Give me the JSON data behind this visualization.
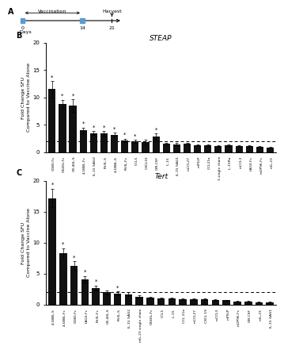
{
  "panel_B_title": "STEAP",
  "panel_C_title": "Tert",
  "ylabel": "Fold Change SFU\nCompared to Vaccine Alone",
  "ylim_B": [
    0,
    20
  ],
  "ylim_C": [
    0,
    20
  ],
  "yticks": [
    0,
    5,
    10,
    15,
    20
  ],
  "B_labels": [
    "CD80-Fc",
    "OX40L-Fc",
    "OX-40L-S",
    "4-1BBL-Fc",
    "IL-15 SAG2",
    "Flt3L-S",
    "4-1BBL-S",
    "Flt3L-Fc",
    "CCL5",
    "CXCL10",
    "GM-CSF",
    "IL-15",
    "IL-15 SAG1",
    "mCCL27",
    "mTSLP",
    "CCL21a",
    "mIL-23 single chain",
    "IL-15Ra",
    "mCCL3",
    "LAG3-Fc",
    "mGP96-Fc",
    "mIL-23"
  ],
  "B_values": [
    11.5,
    8.8,
    8.5,
    4.0,
    3.5,
    3.4,
    3.2,
    2.2,
    2.0,
    1.8,
    2.8,
    1.5,
    1.4,
    1.5,
    1.3,
    1.2,
    1.1,
    1.2,
    1.1,
    1.1,
    1.0,
    0.9
  ],
  "B_errors": [
    1.5,
    0.8,
    1.2,
    0.5,
    0.4,
    0.5,
    0.4,
    0.3,
    0.3,
    0.5,
    0.6,
    0.2,
    0.3,
    0.2,
    0.15,
    0.2,
    0.15,
    0.2,
    0.15,
    0.1,
    0.1,
    0.1
  ],
  "B_significant": [
    true,
    true,
    true,
    true,
    true,
    true,
    true,
    true,
    true,
    false,
    true,
    false,
    false,
    false,
    false,
    false,
    false,
    false,
    false,
    false,
    false,
    false
  ],
  "C_labels": [
    "4-1BBL-S",
    "4-1BBL-Fc",
    "CD80-Fc",
    "LAG3-Fc",
    "Flt3L-Fc",
    "OX-40L-S",
    "Flt3L-S",
    "IL-15 SAG2",
    "mIL-23 single chain",
    "OX40L-Fc",
    "CCL5",
    "IL-15",
    "CCL 21a",
    "mCCL27",
    "CXCL 19",
    "mCCL3",
    "mTSLP",
    "mGP96-Fc",
    "GM-CSF",
    "mIL-23",
    "IL-15 SAG1"
  ],
  "C_values": [
    17.2,
    8.3,
    6.3,
    4.1,
    2.7,
    2.0,
    1.8,
    1.7,
    1.3,
    1.1,
    1.0,
    1.0,
    0.9,
    0.85,
    0.85,
    0.75,
    0.7,
    0.5,
    0.5,
    0.4,
    0.4
  ],
  "C_errors": [
    1.5,
    0.8,
    0.7,
    0.5,
    0.4,
    0.3,
    0.3,
    0.3,
    0.2,
    0.15,
    0.15,
    0.15,
    0.15,
    0.1,
    0.1,
    0.1,
    0.1,
    0.1,
    0.1,
    0.1,
    0.1
  ],
  "C_significant": [
    true,
    true,
    true,
    true,
    true,
    false,
    true,
    false,
    false,
    false,
    false,
    false,
    false,
    false,
    false,
    false,
    false,
    false,
    false,
    false,
    false
  ],
  "bar_color": "#111111",
  "bar_width": 0.7,
  "dashed_line_y": 2.0,
  "fig_width": 3.45,
  "fig_height": 4.0
}
